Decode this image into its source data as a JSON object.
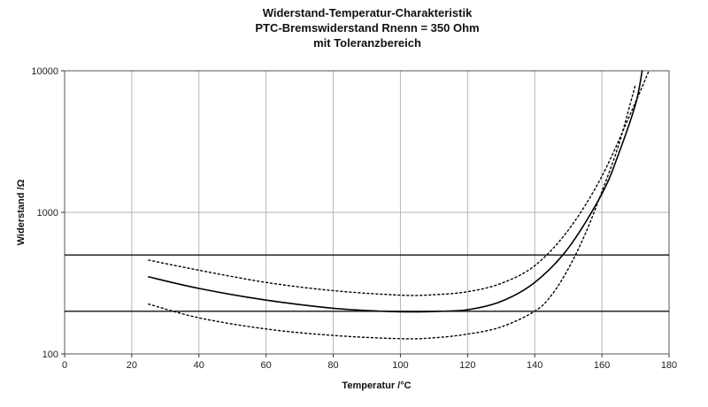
{
  "chart_data": {
    "type": "line",
    "title": "Widerstand-Temperatur-Charakteristik",
    "subtitle": "PTC-Bremswiderstand Rnenn = 350 Ohm",
    "subtitle2": "mit Toleranzbereich",
    "xlabel": "Temperatur /°C",
    "ylabel": "Widerstand /Ω",
    "xlim": [
      0,
      180
    ],
    "ylim": [
      100,
      10000
    ],
    "yscale": "log",
    "grid": true,
    "x_ticks": [
      0,
      20,
      40,
      60,
      80,
      100,
      120,
      140,
      160,
      180
    ],
    "y_ticks": [
      100,
      1000,
      10000
    ],
    "series": [
      {
        "style": "solid",
        "color": "#000000",
        "x": [
          25,
          40,
          60,
          80,
          95,
          104,
          112,
          120,
          130,
          140,
          150,
          160,
          165,
          170,
          172
        ],
        "y": [
          350,
          290,
          240,
          210,
          200,
          198,
          200,
          205,
          235,
          320,
          560,
          1350,
          2600,
          5800,
          10000
        ]
      },
      {
        "style": "dotted",
        "color": "#000000",
        "x": [
          25,
          40,
          60,
          80,
          100,
          110,
          120,
          130,
          140,
          150,
          160,
          170,
          174
        ],
        "y": [
          460,
          390,
          320,
          280,
          260,
          262,
          275,
          315,
          420,
          750,
          1800,
          6000,
          10000
        ]
      },
      {
        "style": "dotted",
        "color": "#000000",
        "x": [
          25,
          40,
          60,
          80,
          100,
          110,
          120,
          130,
          140,
          145,
          150,
          155,
          160,
          165,
          170
        ],
        "y": [
          225,
          180,
          150,
          135,
          128,
          130,
          138,
          155,
          200,
          260,
          400,
          700,
          1400,
          3000,
          8000
        ]
      }
    ],
    "reference_lines": [
      {
        "y": 500,
        "style": "solid"
      },
      {
        "y": 200,
        "style": "solid"
      }
    ]
  }
}
